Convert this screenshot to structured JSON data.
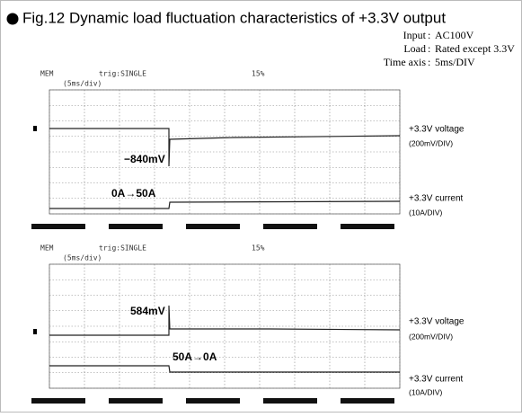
{
  "header": {
    "title": "Fig.12 Dynamic load fluctuation characteristics of +3.3V output"
  },
  "conditions": [
    {
      "label": "Input",
      "value": "AC100V"
    },
    {
      "label": "Load",
      "value": "Rated except 3.3V"
    },
    {
      "label": "Time axis",
      "value": "5ms/DIV"
    }
  ],
  "scopes": [
    {
      "status": "MEM",
      "trigger": "trig:SINGLE",
      "level": "15%",
      "timebase": "(5ms/div)",
      "annotation_voltage": "−840mV",
      "annotation_current": "0A→50A",
      "voltage_label": "+3.3V voltage",
      "voltage_scale": "(200mV/DIV)",
      "current_label": "+3.3V current",
      "current_scale": "(10A/DIV)"
    },
    {
      "status": "MEM",
      "trigger": "trig:SINGLE",
      "level": "15%",
      "timebase": "(5ms/div)",
      "annotation_voltage": "584mV",
      "annotation_current": "50A→0A",
      "voltage_label": "+3.3V voltage",
      "voltage_scale": "(200mV/DIV)",
      "current_label": "+3.3V current",
      "current_scale": "(10A/DIV)"
    }
  ]
}
